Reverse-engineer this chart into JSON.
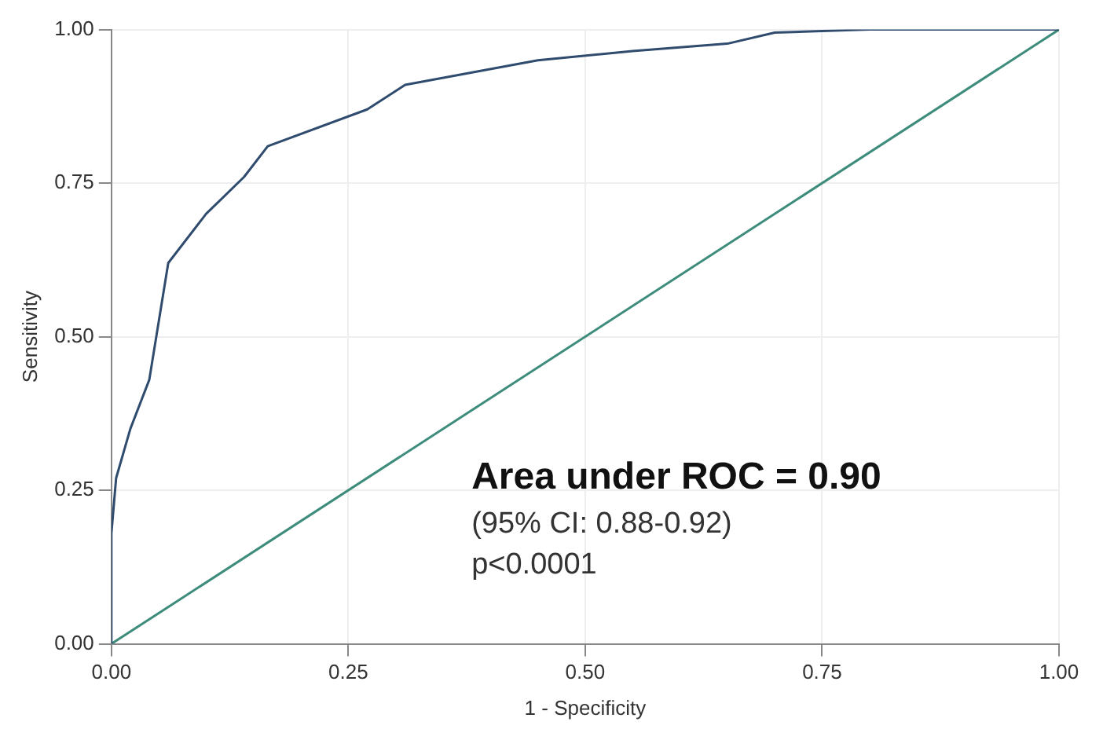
{
  "chart_data": {
    "type": "line",
    "xlabel": "1 - Specificity",
    "ylabel": "Sensitivity",
    "xlim": [
      0,
      1
    ],
    "ylim": [
      0,
      1
    ],
    "xticks": [
      {
        "value": 0,
        "label": "0.00"
      },
      {
        "value": 0.25,
        "label": "0.25"
      },
      {
        "value": 0.5,
        "label": "0.50"
      },
      {
        "value": 0.75,
        "label": "0.75"
      },
      {
        "value": 1,
        "label": "1.00"
      }
    ],
    "yticks": [
      {
        "value": 0,
        "label": "0.00"
      },
      {
        "value": 0.25,
        "label": "0.25"
      },
      {
        "value": 0.5,
        "label": "0.50"
      },
      {
        "value": 0.75,
        "label": "0.75"
      },
      {
        "value": 1,
        "label": "1.00"
      }
    ],
    "grid": true,
    "marker": "none",
    "line_style": "solid",
    "series": [
      {
        "color": "#2f4b6e",
        "x": [
          0,
          0,
          0.005,
          0.02,
          0.04,
          0.06,
          0.1,
          0.14,
          0.165,
          0.27,
          0.31,
          0.45,
          0.55,
          0.65,
          0.7,
          0.8,
          1
        ],
        "values": [
          0,
          0.18,
          0.27,
          0.35,
          0.43,
          0.62,
          0.7,
          0.76,
          0.81,
          0.87,
          0.91,
          0.95,
          0.965,
          0.977,
          0.995,
          1,
          1
        ]
      },
      {
        "color": "#3d8c7c",
        "x": [
          0,
          1
        ],
        "values": [
          0,
          1
        ]
      }
    ],
    "annotations": [
      "Area under ROC = 0.90",
      "(95% CI: 0.88-0.92)",
      "p<0.0001"
    ]
  }
}
